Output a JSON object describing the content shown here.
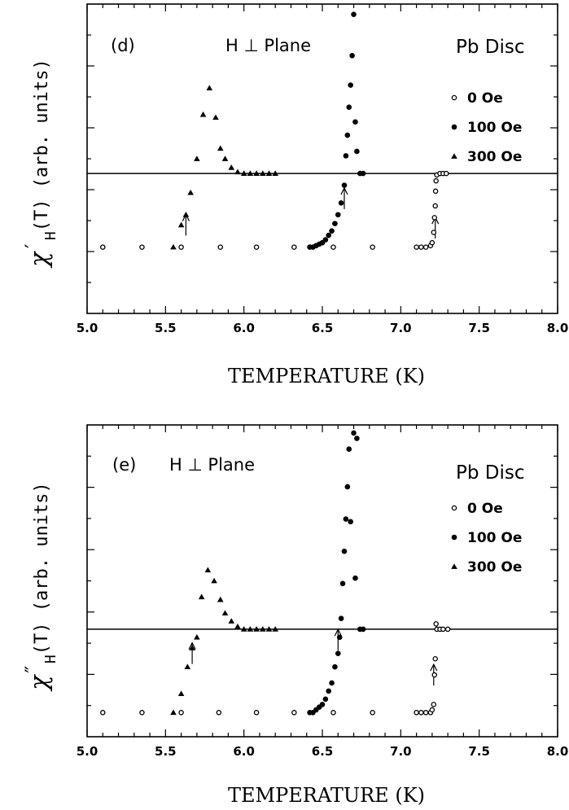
{
  "chart_data": [
    {
      "type": "scatter",
      "panel_label": "(d)",
      "annotation": "H ⊥ Plane",
      "sample": "Pb Disc",
      "ylabel": "χ′H(T) (arb. units)",
      "ylabel_main": "χ",
      "ylabel_prime": "′",
      "ylabel_sub": "H",
      "ylabel_rest": "(T) (arb. units)",
      "xlabel": "TEMPERATURE (K)",
      "xlim": [
        5.0,
        8.0
      ],
      "ylim": [
        -0.45,
        1.65
      ],
      "x_ticks": [
        "5.0",
        "5.5",
        "6.0",
        "6.5",
        "7.0",
        "7.5",
        "8.0"
      ],
      "baseline_y": 0.5,
      "arrows": [
        {
          "x": 5.63,
          "y": 0.15
        },
        {
          "x": 6.64,
          "y": 0.33
        },
        {
          "x": 7.22,
          "y": 0.13
        }
      ],
      "series": [
        {
          "name": "0 Oe",
          "marker": "open-circle",
          "x": [
            5.1,
            5.35,
            5.6,
            5.85,
            6.08,
            6.32,
            6.57,
            6.82,
            7.1,
            7.13,
            7.16,
            7.19,
            7.2,
            7.21,
            7.215,
            7.22,
            7.222,
            7.225,
            7.23,
            7.25,
            7.27,
            7.29
          ],
          "y": [
            0.0,
            0.0,
            0.0,
            0.0,
            0.0,
            0.0,
            0.0,
            0.0,
            0.0,
            0.0,
            0.0,
            0.01,
            0.03,
            0.1,
            0.2,
            0.28,
            0.38,
            0.45,
            0.49,
            0.5,
            0.5,
            0.5
          ]
        },
        {
          "name": "100 Oe",
          "marker": "filled-circle",
          "x": [
            6.42,
            6.44,
            6.46,
            6.48,
            6.5,
            6.52,
            6.54,
            6.56,
            6.58,
            6.6,
            6.62,
            6.64,
            6.65,
            6.66,
            6.67,
            6.68,
            6.69,
            6.7,
            6.71,
            6.72,
            6.74,
            6.76
          ],
          "y": [
            0.0,
            0.0,
            0.01,
            0.02,
            0.03,
            0.05,
            0.08,
            0.11,
            0.16,
            0.22,
            0.3,
            0.42,
            0.62,
            0.76,
            0.95,
            1.1,
            1.3,
            1.58,
            0.85,
            0.65,
            0.5,
            0.5
          ]
        },
        {
          "name": "300 Oe",
          "marker": "filled-triangle",
          "x": [
            5.55,
            5.6,
            5.63,
            5.66,
            5.7,
            5.74,
            5.78,
            5.82,
            5.85,
            5.88,
            5.92,
            5.96,
            6.0,
            6.04,
            6.08,
            6.12,
            6.16,
            6.2
          ],
          "y": [
            0.0,
            0.15,
            0.22,
            0.37,
            0.6,
            0.9,
            1.08,
            0.88,
            0.67,
            0.6,
            0.54,
            0.51,
            0.5,
            0.5,
            0.5,
            0.5,
            0.5,
            0.5
          ]
        }
      ]
    },
    {
      "type": "scatter",
      "panel_label": "(e)",
      "annotation": "H ⊥ Plane",
      "sample": "Pb Disc",
      "ylabel": "χ″H(T) (arb. units)",
      "ylabel_main": "χ",
      "ylabel_prime": "″",
      "ylabel_sub": "H",
      "ylabel_rest": "(T) (arb. units)",
      "xlabel": "TEMPERATURE (K)",
      "xlim": [
        5.0,
        8.0
      ],
      "ylim": [
        -0.09,
        1.07
      ],
      "x_ticks": [
        "5.0",
        "5.5",
        "6.0",
        "6.5",
        "7.0",
        "7.5",
        "8.0"
      ],
      "baseline_y": 0.31,
      "arrows": [
        {
          "x": 5.67,
          "y": 0.22
        },
        {
          "x": 6.6,
          "y": 0.27
        },
        {
          "x": 7.21,
          "y": 0.14
        }
      ],
      "series": [
        {
          "name": "0 Oe",
          "marker": "open-circle",
          "x": [
            5.1,
            5.35,
            5.6,
            5.84,
            6.08,
            6.32,
            6.57,
            6.82,
            7.1,
            7.13,
            7.16,
            7.19,
            7.2,
            7.21,
            7.215,
            7.22,
            7.225,
            7.23,
            7.25,
            7.27,
            7.3
          ],
          "y": [
            0.0,
            0.0,
            0.0,
            0.0,
            0.0,
            0.0,
            0.0,
            0.0,
            0.0,
            0.0,
            0.0,
            0.0,
            0.01,
            0.03,
            0.14,
            0.2,
            0.33,
            0.31,
            0.31,
            0.31,
            0.31
          ]
        },
        {
          "name": "100 Oe",
          "marker": "filled-circle",
          "x": [
            6.42,
            6.44,
            6.46,
            6.48,
            6.5,
            6.52,
            6.54,
            6.56,
            6.58,
            6.6,
            6.61,
            6.62,
            6.63,
            6.64,
            6.65,
            6.66,
            6.67,
            6.68,
            6.7,
            6.71,
            6.72,
            6.74,
            6.76
          ],
          "y": [
            0.0,
            0.0,
            0.01,
            0.02,
            0.03,
            0.05,
            0.08,
            0.11,
            0.17,
            0.22,
            0.28,
            0.35,
            0.48,
            0.6,
            0.72,
            0.84,
            0.98,
            0.71,
            1.04,
            0.5,
            1.02,
            0.31,
            0.31
          ]
        },
        {
          "name": "300 Oe",
          "marker": "filled-triangle",
          "x": [
            5.55,
            5.6,
            5.64,
            5.67,
            5.7,
            5.73,
            5.77,
            5.81,
            5.85,
            5.88,
            5.92,
            5.96,
            6.0,
            6.04,
            6.08,
            6.12,
            6.16,
            6.2
          ],
          "y": [
            0.0,
            0.07,
            0.17,
            0.24,
            0.28,
            0.43,
            0.53,
            0.49,
            0.42,
            0.37,
            0.34,
            0.32,
            0.31,
            0.31,
            0.31,
            0.31,
            0.31,
            0.31
          ]
        }
      ]
    }
  ]
}
